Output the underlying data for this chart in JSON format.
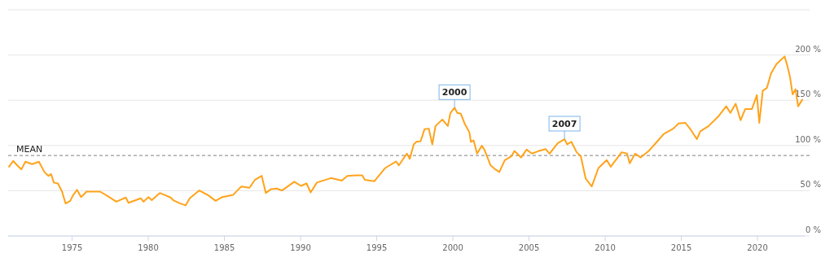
{
  "chart_data": {
    "type": "line",
    "xlim": [
      1970.8,
      2023.1
    ],
    "xticks": [
      1975,
      1980,
      1985,
      1990,
      1995,
      2000,
      2005,
      2010,
      2015,
      2020
    ],
    "ylim": [
      0,
      250
    ],
    "yticks": [
      {
        "value": 0,
        "label": "0 %"
      },
      {
        "value": 50,
        "label": "50 %"
      },
      {
        "value": 100,
        "label": "100 %"
      },
      {
        "value": 150,
        "label": "150 %"
      },
      {
        "value": 200,
        "label": "200 %"
      },
      {
        "value": 250,
        "label": null
      }
    ],
    "grid": "y",
    "marker": "none",
    "line_style": "solid",
    "series": [
      {
        "color": "#ffa31a",
        "x": [
          1970.86,
          1971.13,
          1971.4,
          1971.67,
          1971.93,
          1972.38,
          1972.82,
          1973.18,
          1973.45,
          1973.62,
          1973.8,
          1974.07,
          1974.34,
          1974.57,
          1974.88,
          1975.05,
          1975.32,
          1975.59,
          1975.95,
          1976.39,
          1976.84,
          1977.37,
          1977.9,
          1978.53,
          1978.7,
          1979.51,
          1979.69,
          1980.01,
          1980.23,
          1980.76,
          1981.47,
          1981.65,
          1982.1,
          1982.45,
          1982.72,
          1983.35,
          1983.97,
          1984.42,
          1984.86,
          1985.58,
          1986.11,
          1986.65,
          1987.0,
          1987.45,
          1987.72,
          1988.07,
          1988.43,
          1988.78,
          1989.59,
          1990.03,
          1990.39,
          1990.66,
          1991.07,
          1992.0,
          1992.71,
          1993.07,
          1993.6,
          1994.05,
          1994.22,
          1994.85,
          1995.56,
          1996.28,
          1996.45,
          1996.98,
          1997.17,
          1997.43,
          1997.61,
          1997.88,
          1998.14,
          1998.42,
          1998.65,
          1998.86,
          1999.31,
          1999.67,
          1999.84,
          2000.11,
          2000.29,
          2000.52,
          2000.77,
          2001.09,
          2001.18,
          2001.36,
          2001.59,
          2001.9,
          2002.07,
          2002.48,
          2002.79,
          2003.05,
          2003.41,
          2003.86,
          2004.04,
          2004.48,
          2004.84,
          2005.19,
          2005.64,
          2006.09,
          2006.35,
          2006.89,
          2007.33,
          2007.51,
          2007.78,
          2008.13,
          2008.4,
          2008.72,
          2009.12,
          2009.56,
          2010.1,
          2010.37,
          2011.08,
          2011.44,
          2011.61,
          2011.97,
          2012.33,
          2012.86,
          2013.4,
          2013.85,
          2014.47,
          2014.82,
          2015.27,
          2015.63,
          2016.02,
          2016.25,
          2016.79,
          2017.41,
          2017.95,
          2018.22,
          2018.57,
          2018.89,
          2019.2,
          2019.64,
          2019.96,
          2020.12,
          2020.35,
          2020.62,
          2020.89,
          2021.24,
          2021.6,
          2021.78,
          2021.96,
          2022.14,
          2022.31,
          2022.5,
          2022.67,
          2022.94
        ],
        "values": [
          76.5,
          83,
          78,
          73.6,
          82,
          79.4,
          82,
          70.7,
          66.4,
          68.4,
          59,
          58,
          49,
          35.9,
          38.8,
          44.6,
          51,
          43,
          49,
          49,
          49,
          43.7,
          37.9,
          42.5,
          36.7,
          41.6,
          37.9,
          43,
          39.6,
          47.5,
          42.5,
          39.4,
          35.9,
          33.8,
          41.6,
          50.3,
          44.6,
          38.8,
          43,
          45.5,
          54.7,
          53.3,
          62,
          66.4,
          47.5,
          51.8,
          52.4,
          50.3,
          59.9,
          55.3,
          58.2,
          48.1,
          59,
          64,
          61.1,
          66.4,
          66.9,
          66.9,
          62,
          60.5,
          75.1,
          82.3,
          78,
          91,
          85.2,
          101.2,
          104.1,
          104.7,
          118,
          118.6,
          101.2,
          121.5,
          128.7,
          121.5,
          136,
          141.8,
          136,
          135.2,
          124.4,
          114.3,
          104.1,
          105.6,
          91,
          99.7,
          95.4,
          78,
          73.6,
          70.7,
          83.8,
          88.2,
          93.9,
          86.7,
          95.4,
          91,
          93.9,
          96,
          91,
          102.6,
          107,
          101.2,
          104.1,
          92.5,
          88.2,
          63.4,
          54.7,
          75.1,
          83.8,
          76.5,
          92.5,
          91,
          80.3,
          91,
          86.7,
          93.9,
          104.1,
          112.8,
          118.6,
          124.4,
          125,
          117.2,
          107,
          115.7,
          121.5,
          131.7,
          143.3,
          136,
          146.2,
          127.9,
          140.4,
          140.4,
          155.7,
          125,
          160.7,
          163.6,
          179.6,
          189.7,
          195.6,
          198.4,
          188.3,
          175.3,
          156.4,
          162.2,
          143.3,
          150.5
        ]
      }
    ],
    "ref_lines": [
      {
        "axis": "y",
        "value": 89,
        "label": "MEAN",
        "color": "#999999",
        "line_style": "dashed"
      }
    ],
    "annotations": [
      {
        "text": "2000",
        "x": 2000.11,
        "y": 141.8
      },
      {
        "text": "2007",
        "x": 2007.33,
        "y": 107
      }
    ]
  }
}
